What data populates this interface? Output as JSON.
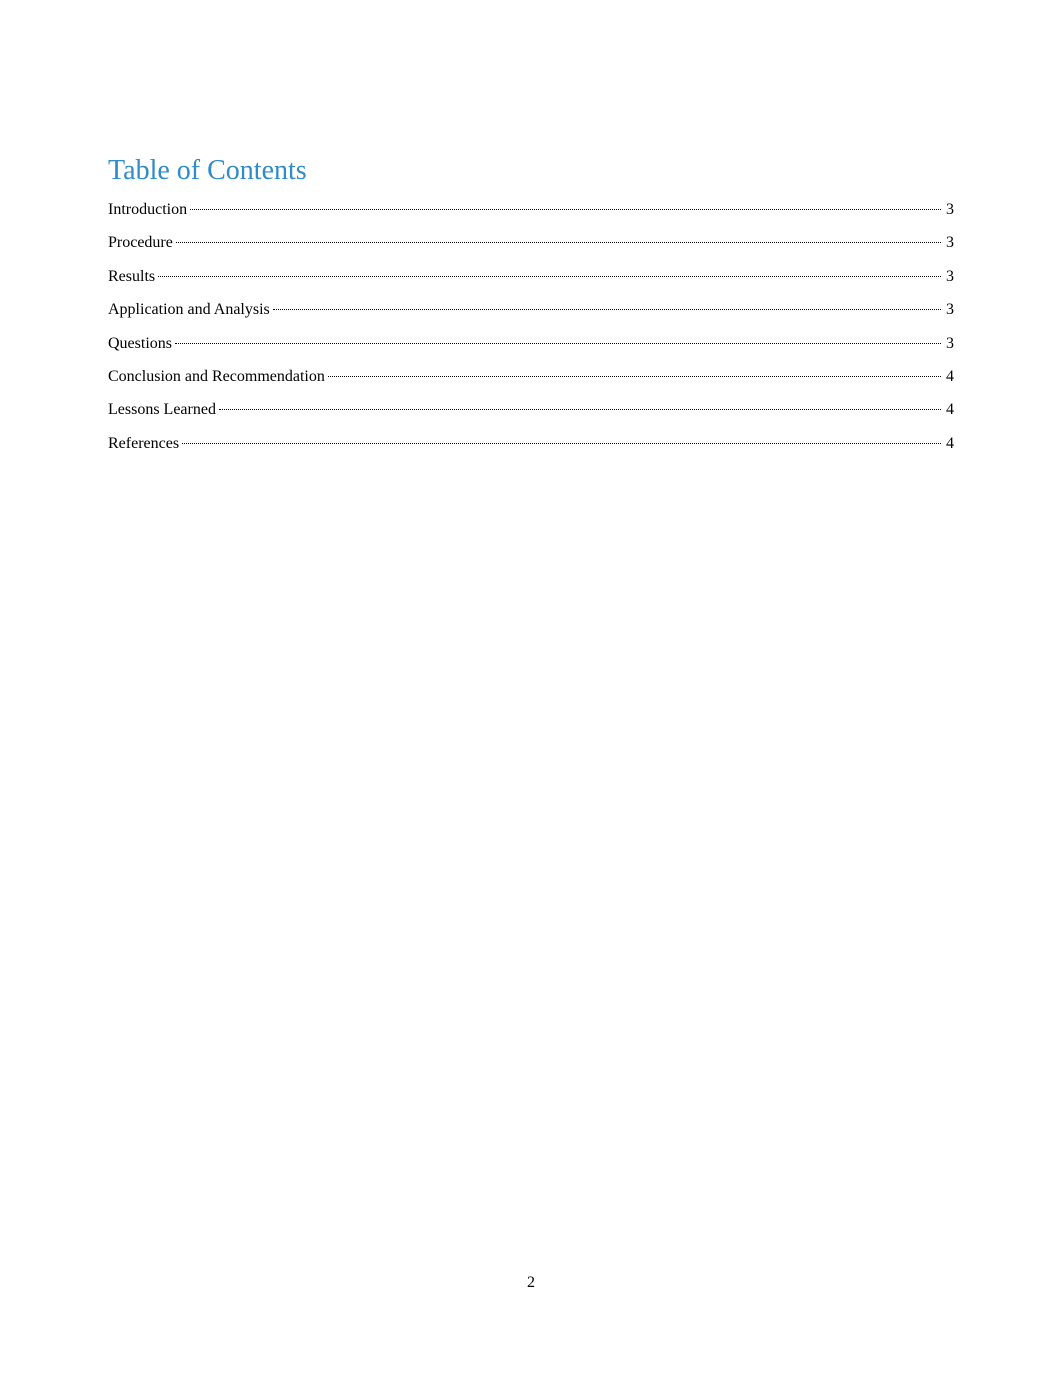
{
  "title": "Table of Contents",
  "title_color": "#2f8bca",
  "title_fontsize": 28,
  "text_color": "#000000",
  "entry_fontsize": 16,
  "background_color": "#ffffff",
  "entries": [
    {
      "label": "Introduction",
      "page": "3"
    },
    {
      "label": "Procedure",
      "page": "3"
    },
    {
      "label": "Results",
      "page": "3"
    },
    {
      "label": "Application and Analysis",
      "page": "3"
    },
    {
      "label": "Questions",
      "page": "3"
    },
    {
      "label": "Conclusion and Recommendation",
      "page": "4"
    },
    {
      "label": "Lessons Learned",
      "page": "4"
    },
    {
      "label": "References",
      "page": "4"
    }
  ],
  "page_number": "2"
}
